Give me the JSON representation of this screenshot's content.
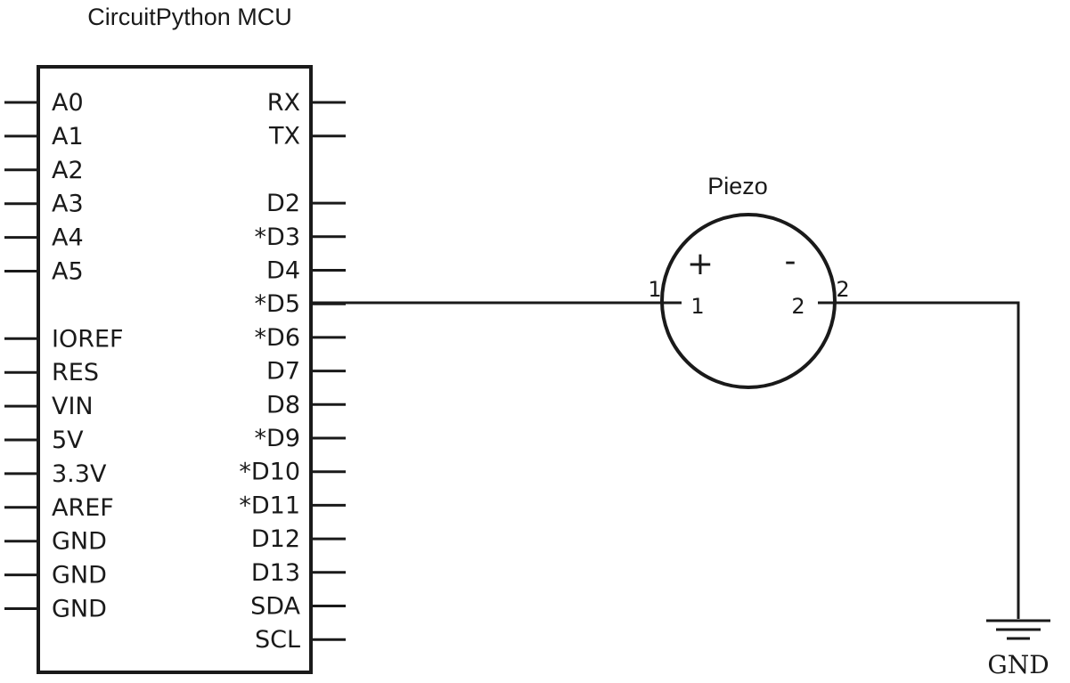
{
  "mcu": {
    "title": "CircuitPython MCU",
    "left_pins": [
      "A0",
      "A1",
      "A2",
      "A3",
      "A4",
      "A5",
      "",
      "IOREF",
      "RES",
      "VIN",
      "5V",
      "3.3V",
      "AREF",
      "GND",
      "GND",
      "GND"
    ],
    "right_pins": [
      "RX",
      "TX",
      "",
      "D2",
      "*D3",
      "D4",
      "*D5",
      "*D6",
      "D7",
      "D8",
      "*D9",
      "*D10",
      "*D11",
      "D12",
      "D13",
      "SDA",
      "SCL"
    ]
  },
  "piezo": {
    "title": "Piezo",
    "plus": "+",
    "minus": "-",
    "pin1_outer": "1",
    "pin1_inner": "1",
    "pin2_outer": "2",
    "pin2_inner": "2"
  },
  "ground": {
    "label": "GND"
  },
  "colors": {
    "ink": "#1a1a1a",
    "background": "#ffffff"
  }
}
